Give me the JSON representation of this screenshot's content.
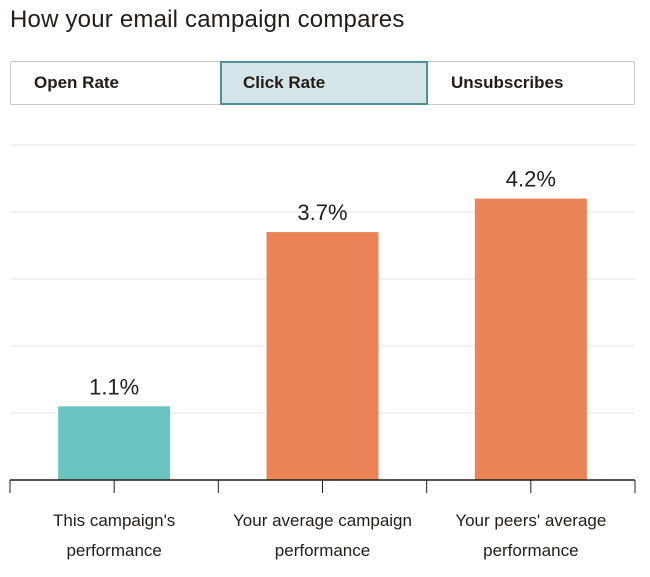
{
  "title": "How your email campaign compares",
  "tabs": [
    {
      "label": "Open Rate",
      "active": false
    },
    {
      "label": "Click Rate",
      "active": true
    },
    {
      "label": "Unsubscribes",
      "active": false
    }
  ],
  "colors": {
    "this_campaign": "#6cc4c0",
    "averages": "#ea8355",
    "active_tab_bg": "#d3e5e8",
    "active_tab_border": "#4d8f9a",
    "gridline": "#e3e3e3",
    "axis": "#241c15"
  },
  "chart_data": {
    "type": "bar",
    "categories": [
      [
        "This campaign's",
        "performance"
      ],
      [
        "Your average campaign",
        "performance"
      ],
      [
        "Your peers' average",
        "performance"
      ]
    ],
    "values": [
      1.1,
      3.7,
      4.2
    ],
    "value_labels": [
      "1.1%",
      "3.7%",
      "4.2%"
    ],
    "bar_colors": [
      "#6cc4c0",
      "#ea8355",
      "#ea8355"
    ],
    "ylim": [
      0,
      5
    ],
    "grid": true,
    "title": "",
    "xlabel": "",
    "ylabel": ""
  }
}
